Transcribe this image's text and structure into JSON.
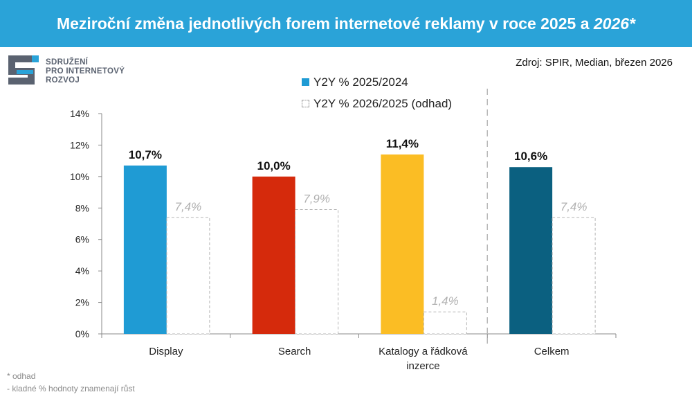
{
  "header": {
    "title": "Meziroční změna jednotlivých forem internetové reklamy v roce 2025 a",
    "title_italic": "2026*"
  },
  "logo": {
    "lines": [
      "SDRUŽENÍ",
      "PRO INTERNETOVÝ",
      "ROZVOJ"
    ]
  },
  "source": "Zdroj: SPIR, Median, březen 2026",
  "legend": [
    {
      "label": "Y2Y % 2025/2024",
      "style": "solid"
    },
    {
      "label": "Y2Y % 2026/2025 (odhad)",
      "style": "dashed"
    }
  ],
  "footnotes": [
    "* odhad",
    "- kladné % hodnoty znamenají růst"
  ],
  "chart_data": {
    "type": "bar",
    "categories": [
      "Display",
      "Search",
      "Katalogy a řádková inzerce",
      "Celkem"
    ],
    "category_lines": [
      [
        "Display"
      ],
      [
        "Search"
      ],
      [
        "Katalogy a řádková",
        "inzerce"
      ],
      [
        "Celkem"
      ]
    ],
    "series": [
      {
        "name": "Y2Y % 2025/2024",
        "values": [
          10.7,
          10.0,
          11.4,
          10.6
        ],
        "labels": [
          "10,7%",
          "10,0%",
          "11,4%",
          "10,6%"
        ],
        "colors": [
          "#1f9bd4",
          "#d52a0c",
          "#fbbd24",
          "#0b6080"
        ]
      },
      {
        "name": "Y2Y % 2026/2025 (odhad)",
        "values": [
          7.4,
          7.9,
          1.4,
          7.4
        ],
        "labels": [
          "7,4%",
          "7,9%",
          "1,4%",
          "7,4%"
        ],
        "style": "dashed"
      }
    ],
    "ylim": [
      0,
      14
    ],
    "yticks": [
      0,
      2,
      4,
      6,
      8,
      10,
      12,
      14
    ],
    "ytick_labels": [
      "0%",
      "2%",
      "4%",
      "6%",
      "8%",
      "10%",
      "12%",
      "14%"
    ],
    "separator_before_category": 3
  }
}
